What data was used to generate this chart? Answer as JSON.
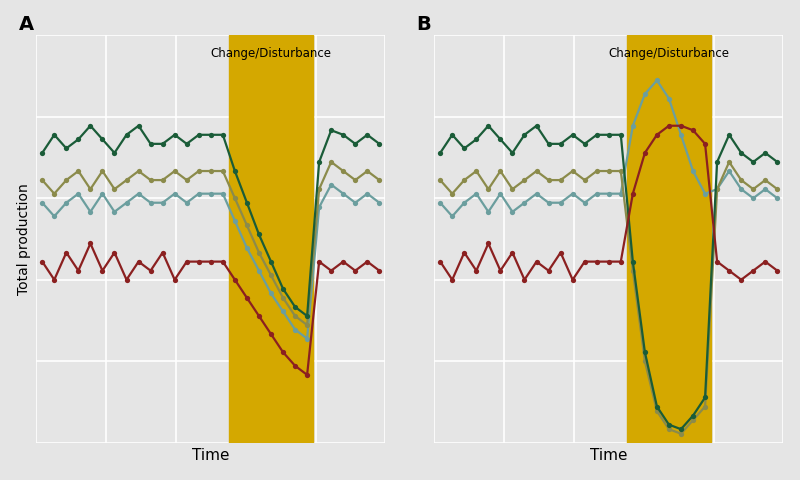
{
  "panel_A_label": "A",
  "panel_B_label": "B",
  "xlabel": "Time",
  "ylabel": "Total production",
  "disturbance_label": "Change/Disturbance",
  "background_color": "#e5e5e5",
  "plot_bg_color": "#e5e5e5",
  "grid_color": "#ffffff",
  "disturbance_color": "#D4A800",
  "disturbance_alpha": 1.0,
  "colors": {
    "dark_green": "#1a5c38",
    "olive": "#8b8b4b",
    "teal": "#6b9e9e",
    "red": "#8b2020"
  },
  "n_pre": 16,
  "n_dist": 7,
  "n_post": 6,
  "panel_A": {
    "dark_green": [
      0.74,
      0.78,
      0.75,
      0.77,
      0.8,
      0.77,
      0.74,
      0.78,
      0.8,
      0.76,
      0.76,
      0.78,
      0.76,
      0.78,
      0.78,
      0.78,
      0.7,
      0.63,
      0.56,
      0.5,
      0.44,
      0.4,
      0.38,
      0.72,
      0.79,
      0.78,
      0.76,
      0.78,
      0.76
    ],
    "olive": [
      0.68,
      0.65,
      0.68,
      0.7,
      0.66,
      0.7,
      0.66,
      0.68,
      0.7,
      0.68,
      0.68,
      0.7,
      0.68,
      0.7,
      0.7,
      0.7,
      0.64,
      0.58,
      0.52,
      0.47,
      0.42,
      0.38,
      0.36,
      0.66,
      0.72,
      0.7,
      0.68,
      0.7,
      0.68
    ],
    "teal": [
      0.63,
      0.6,
      0.63,
      0.65,
      0.61,
      0.65,
      0.61,
      0.63,
      0.65,
      0.63,
      0.63,
      0.65,
      0.63,
      0.65,
      0.65,
      0.65,
      0.59,
      0.53,
      0.48,
      0.43,
      0.39,
      0.35,
      0.33,
      0.62,
      0.67,
      0.65,
      0.63,
      0.65,
      0.63
    ],
    "red": [
      0.5,
      0.46,
      0.52,
      0.48,
      0.54,
      0.48,
      0.52,
      0.46,
      0.5,
      0.48,
      0.52,
      0.46,
      0.5,
      0.5,
      0.5,
      0.5,
      0.46,
      0.42,
      0.38,
      0.34,
      0.3,
      0.27,
      0.25,
      0.5,
      0.48,
      0.5,
      0.48,
      0.5,
      0.48
    ]
  },
  "panel_B": {
    "dark_green": [
      0.74,
      0.78,
      0.75,
      0.77,
      0.8,
      0.77,
      0.74,
      0.78,
      0.8,
      0.76,
      0.76,
      0.78,
      0.76,
      0.78,
      0.78,
      0.78,
      0.5,
      0.3,
      0.18,
      0.14,
      0.13,
      0.16,
      0.2,
      0.72,
      0.78,
      0.74,
      0.72,
      0.74,
      0.72
    ],
    "olive": [
      0.68,
      0.65,
      0.68,
      0.7,
      0.66,
      0.7,
      0.66,
      0.68,
      0.7,
      0.68,
      0.68,
      0.7,
      0.68,
      0.7,
      0.7,
      0.7,
      0.48,
      0.28,
      0.17,
      0.13,
      0.12,
      0.15,
      0.18,
      0.66,
      0.72,
      0.68,
      0.66,
      0.68,
      0.66
    ],
    "teal": [
      0.63,
      0.6,
      0.63,
      0.65,
      0.61,
      0.65,
      0.61,
      0.63,
      0.65,
      0.63,
      0.63,
      0.65,
      0.63,
      0.65,
      0.65,
      0.65,
      0.8,
      0.87,
      0.9,
      0.86,
      0.78,
      0.7,
      0.65,
      0.66,
      0.7,
      0.66,
      0.64,
      0.66,
      0.64
    ],
    "red": [
      0.5,
      0.46,
      0.52,
      0.48,
      0.54,
      0.48,
      0.52,
      0.46,
      0.5,
      0.48,
      0.52,
      0.46,
      0.5,
      0.5,
      0.5,
      0.5,
      0.65,
      0.74,
      0.78,
      0.8,
      0.8,
      0.79,
      0.76,
      0.5,
      0.48,
      0.46,
      0.48,
      0.5,
      0.48
    ]
  }
}
